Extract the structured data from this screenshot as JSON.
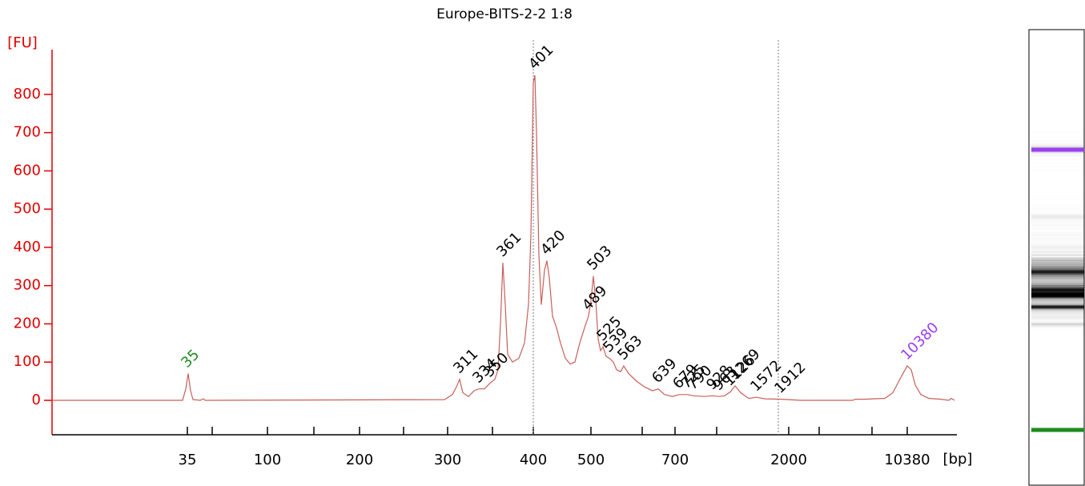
{
  "chart_data": {
    "type": "line",
    "title": "Europe-BITS-2-2 1:8",
    "y_label": "[FU]",
    "x_label": "[bp]",
    "ylim": [
      -90,
      917
    ],
    "yticks": [
      0,
      100,
      200,
      300,
      400,
      500,
      600,
      700,
      800
    ],
    "xlim": [
      0,
      113
    ],
    "xticks": [
      {
        "value": 16.9,
        "label": "35"
      },
      {
        "value": 26.9,
        "label": "100"
      },
      {
        "value": 38.4,
        "label": "200"
      },
      {
        "value": 49.4,
        "label": "300"
      },
      {
        "value": 60.1,
        "label": "400"
      },
      {
        "value": 67.3,
        "label": "500"
      },
      {
        "value": 77.8,
        "label": "700"
      },
      {
        "value": 92.0,
        "label": "2000"
      },
      {
        "value": 106.8,
        "label": "10380"
      }
    ],
    "xminorticks": [
      20.0,
      32.7,
      43.9,
      55.0,
      73.7,
      83.0,
      95.8,
      102.4
    ],
    "region_markers": [
      60.1,
      90.7
    ],
    "color": "#c8605a",
    "axis_color": "#e00000",
    "series": [
      {
        "name": "Europe-BITS-2-2 1:8",
        "x": [
          0,
          16.3,
          16.7,
          17.0,
          17.3,
          17.6,
          18.5,
          18.9,
          19.1,
          49.0,
          50.0,
          50.5,
          50.9,
          51.3,
          52.0,
          52.7,
          53.3,
          54.0,
          54.7,
          55.3,
          55.7,
          56.0,
          56.3,
          56.6,
          56.9,
          57.5,
          58.3,
          59.0,
          59.5,
          59.8,
          60.1,
          60.3,
          60.5,
          60.8,
          61.1,
          61.5,
          61.8,
          62.1,
          62.5,
          63.0,
          63.5,
          64.1,
          64.7,
          65.3,
          65.9,
          66.5,
          67.0,
          67.3,
          67.6,
          67.9,
          68.2,
          68.5,
          68.8,
          69.2,
          69.6,
          70.1,
          70.5,
          71.0,
          71.4,
          72.0,
          73.0,
          74.0,
          75.0,
          75.7,
          76.5,
          77.5,
          78.3,
          79.3,
          80.1,
          81.5,
          82.5,
          83.3,
          84.0,
          84.7,
          85.3,
          86.0,
          87.0,
          88.0,
          89.0,
          91.0,
          92.0,
          93.5,
          100.0,
          100.3,
          101.5,
          102.5,
          104.0,
          105.0,
          106.0,
          106.8,
          107.3,
          107.8,
          108.5,
          109.5,
          111.0,
          112.0,
          112.3,
          112.7
        ],
        "values": [
          0,
          0,
          30,
          70,
          25,
          2,
          0,
          4,
          0,
          2,
          15,
          35,
          55,
          20,
          10,
          25,
          30,
          30,
          45,
          55,
          80,
          200,
          360,
          250,
          120,
          100,
          110,
          150,
          250,
          430,
          830,
          850,
          700,
          380,
          250,
          340,
          365,
          320,
          220,
          190,
          150,
          110,
          95,
          100,
          150,
          190,
          220,
          260,
          325,
          260,
          160,
          130,
          140,
          115,
          110,
          100,
          80,
          75,
          90,
          70,
          50,
          35,
          25,
          30,
          15,
          10,
          15,
          15,
          12,
          10,
          12,
          10,
          12,
          22,
          38,
          20,
          5,
          8,
          4,
          3,
          2,
          0,
          0,
          3,
          3,
          4,
          5,
          20,
          60,
          90,
          80,
          40,
          15,
          5,
          3,
          0,
          5,
          0
        ]
      }
    ],
    "peaks": [
      {
        "label": "35",
        "x": 16.9,
        "color": "#1e8c1e"
      },
      {
        "label": "311",
        "x": 50.9,
        "color": "#000000"
      },
      {
        "label": "334",
        "x": 53.3,
        "color": "#000000"
      },
      {
        "label": "350",
        "x": 54.7,
        "color": "#000000"
      },
      {
        "label": "361",
        "x": 56.3,
        "color": "#000000"
      },
      {
        "label": "401",
        "x": 60.3,
        "color": "#000000"
      },
      {
        "label": "420",
        "x": 61.8,
        "color": "#000000"
      },
      {
        "label": "489",
        "x": 67.0,
        "color": "#000000"
      },
      {
        "label": "503",
        "x": 67.6,
        "color": "#000000"
      },
      {
        "label": "525",
        "x": 68.8,
        "color": "#000000"
      },
      {
        "label": "539",
        "x": 69.6,
        "color": "#000000"
      },
      {
        "label": "563",
        "x": 71.4,
        "color": "#000000"
      },
      {
        "label": "639",
        "x": 75.7,
        "color": "#000000"
      },
      {
        "label": "679",
        "x": 78.3,
        "color": "#000000"
      },
      {
        "label": "725",
        "x": 79.3,
        "color": "#000000"
      },
      {
        "label": "790",
        "x": 80.1,
        "color": "#000000"
      },
      {
        "label": "928",
        "x": 82.5,
        "color": "#000000"
      },
      {
        "label": "963",
        "x": 83.3,
        "color": "#000000"
      },
      {
        "label": "1126",
        "x": 84.7,
        "color": "#000000"
      },
      {
        "label": "1269",
        "x": 85.3,
        "color": "#000000"
      },
      {
        "label": "1572",
        "x": 88.0,
        "color": "#000000"
      },
      {
        "label": "1912",
        "x": 91.0,
        "color": "#000000"
      },
      {
        "label": "10380",
        "x": 106.8,
        "color": "#9a3ff0"
      }
    ]
  }
}
